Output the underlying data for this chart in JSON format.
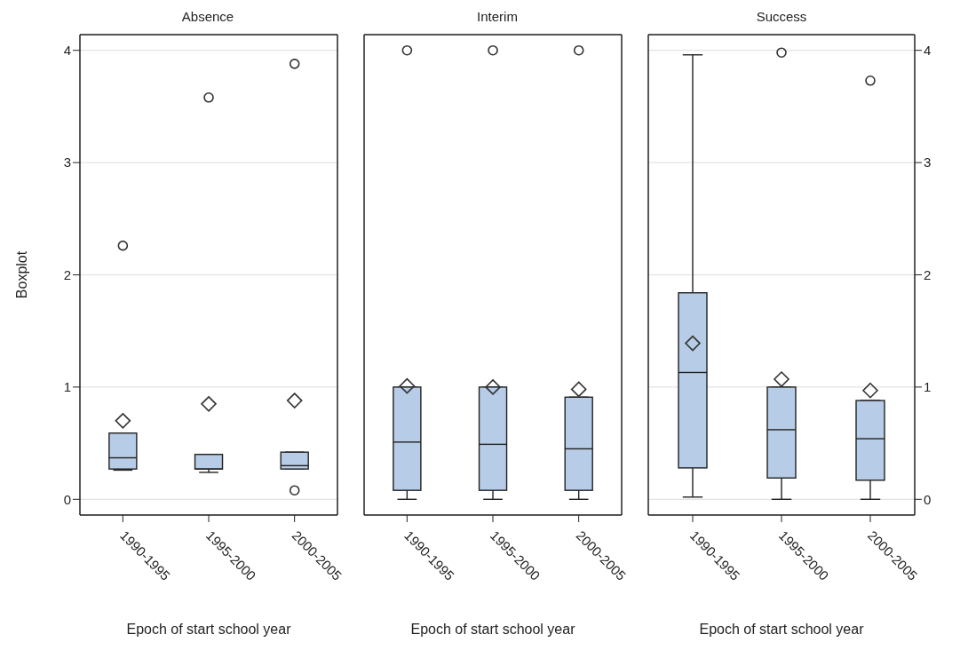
{
  "chart_data": [
    {
      "type": "box",
      "title": "Absence",
      "xlabel": "Epoch of start school year",
      "ylabel": "Boxplot",
      "categories": [
        "1990-1995",
        "1995-2000",
        "2000-2005"
      ],
      "color": "#b7cce6",
      "ylim": [
        -0.14,
        4.14
      ],
      "yticks": [
        0,
        1,
        2,
        3,
        4
      ],
      "grid": "y",
      "marker": "diamond",
      "boxes": [
        {
          "low": 0.26,
          "q1": 0.27,
          "median": 0.37,
          "q3": 0.59,
          "high": 0.27,
          "mean": 0.7,
          "outliers": [
            2.26
          ]
        },
        {
          "low": 0.24,
          "q1": 0.27,
          "median": 0.27,
          "q3": 0.4,
          "high": 0.4,
          "mean": 0.85,
          "outliers": [
            3.58
          ]
        },
        {
          "low": 0.27,
          "q1": 0.27,
          "median": 0.3,
          "q3": 0.42,
          "high": 0.42,
          "mean": 0.88,
          "outliers": [
            0.08,
            3.88
          ]
        }
      ]
    },
    {
      "type": "box",
      "title": "Interim",
      "xlabel": "Epoch of start school year",
      "categories": [
        "1990-1995",
        "1995-2000",
        "2000-2005"
      ],
      "color": "#b7cce6",
      "ylim": [
        -0.14,
        4.14
      ],
      "yticks": [
        0,
        1,
        2,
        3,
        4
      ],
      "grid": "y",
      "marker": "diamond",
      "tick_labels": "x",
      "boxes": [
        {
          "low": 0,
          "q1": 0.08,
          "median": 0.51,
          "q3": 1.0,
          "high": 1.0,
          "mean": 1.01,
          "outliers": [
            4.0
          ]
        },
        {
          "low": 0,
          "q1": 0.08,
          "median": 0.49,
          "q3": 1.0,
          "high": 1.0,
          "mean": 1.0,
          "outliers": [
            4.0
          ]
        },
        {
          "low": 0,
          "q1": 0.08,
          "median": 0.45,
          "q3": 0.91,
          "high": 0.91,
          "mean": 0.98,
          "outliers": [
            4.0
          ]
        }
      ]
    },
    {
      "type": "box",
      "title": "Success",
      "xlabel": "Epoch of start school year",
      "categories": [
        "1990-1995",
        "1995-2000",
        "2000-2005"
      ],
      "color": "#b7cce6",
      "ylim": [
        -0.14,
        4.14
      ],
      "yticks": [
        0,
        1,
        2,
        3,
        4
      ],
      "grid": "y",
      "marker": "diamond",
      "boxes": [
        {
          "low": 0.02,
          "q1": 0.28,
          "median": 1.13,
          "q3": 1.84,
          "high": 3.96,
          "mean": 1.39
        },
        {
          "low": 0,
          "q1": 0.19,
          "median": 0.62,
          "q3": 1.0,
          "high": 1.0,
          "mean": 1.07,
          "outliers": [
            3.98
          ]
        },
        {
          "low": 0,
          "q1": 0.17,
          "median": 0.54,
          "q3": 0.88,
          "high": 0.88,
          "mean": 0.97,
          "outliers": [
            3.73
          ]
        }
      ]
    }
  ]
}
